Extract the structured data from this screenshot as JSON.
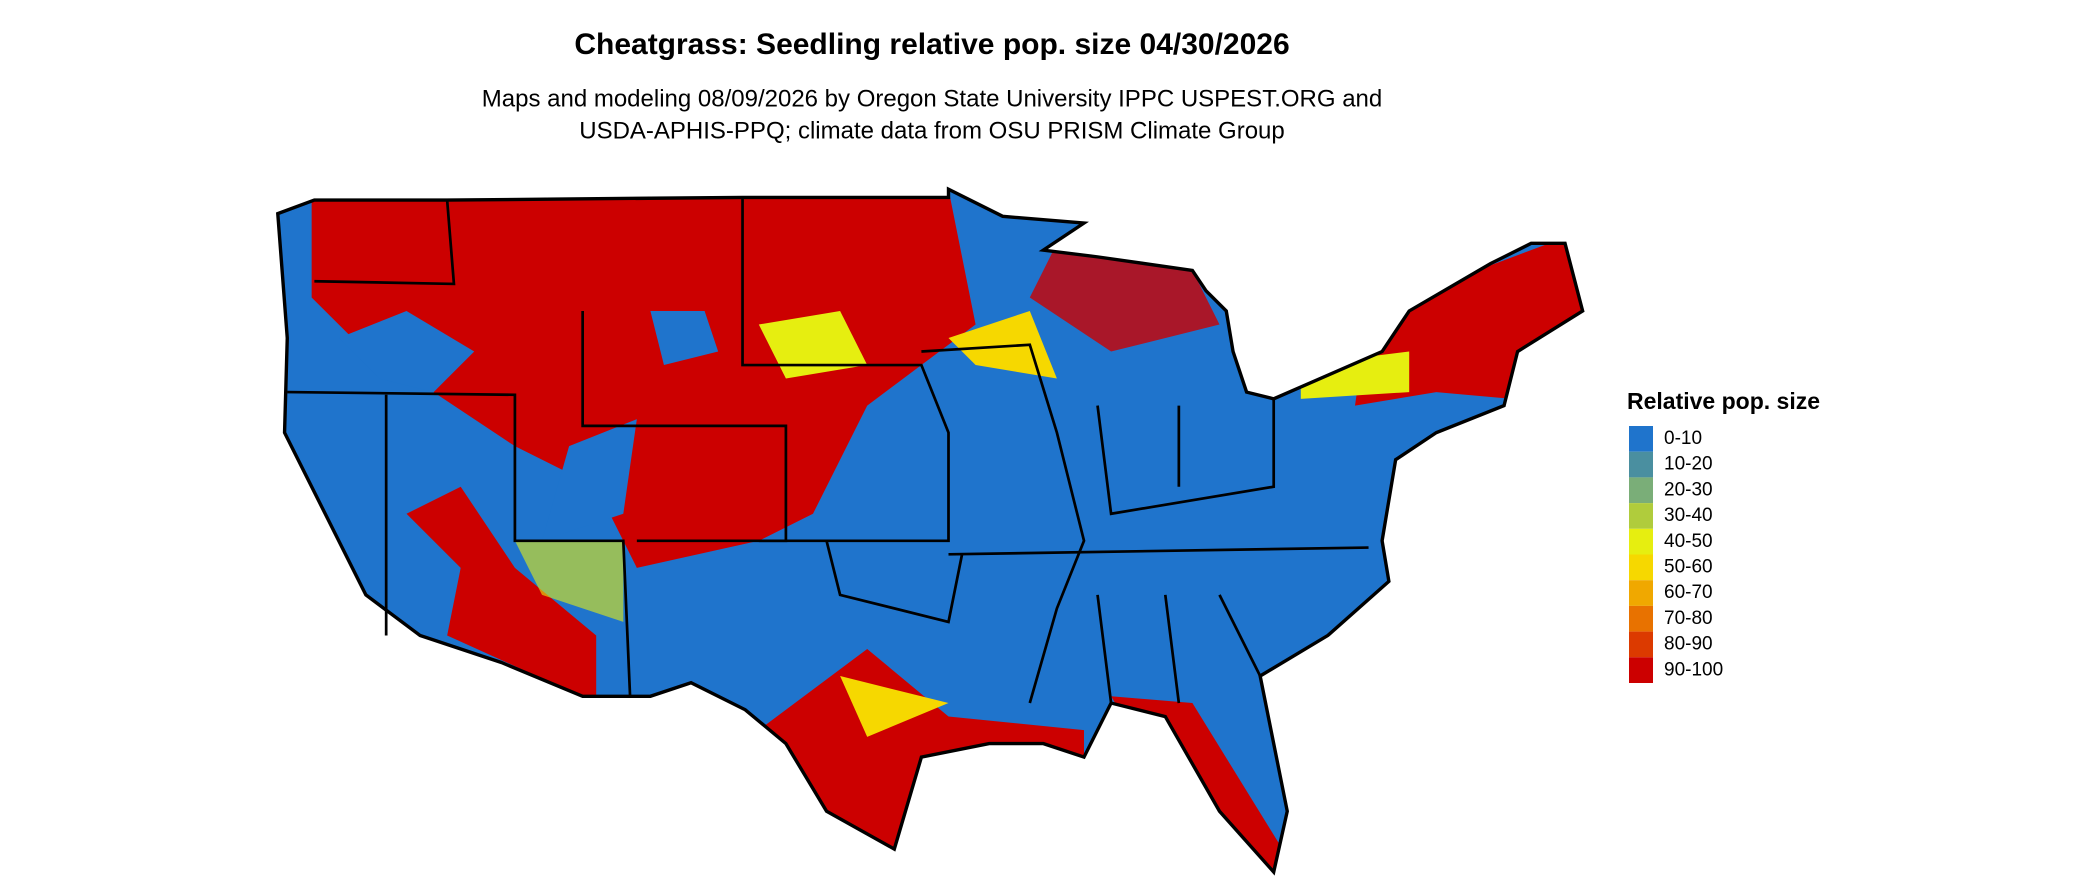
{
  "title": "Cheatgrass: Seedling relative pop. size 04/30/2026",
  "subtitle": [
    "Maps and modeling 08/09/2026 by Oregon State University IPPC USPEST.ORG and",
    "USDA-APHIS-PPQ; climate data from OSU PRISM Climate Group"
  ],
  "legend": {
    "title": "Relative pop. size",
    "items": [
      {
        "label": "0-10",
        "color": "#1f74cc"
      },
      {
        "label": "10-20",
        "color": "#4a8fa0"
      },
      {
        "label": "20-30",
        "color": "#7aae78"
      },
      {
        "label": "30-40",
        "color": "#b0cc3c"
      },
      {
        "label": "40-50",
        "color": "#e6ee10"
      },
      {
        "label": "50-60",
        "color": "#f6d800"
      },
      {
        "label": "60-70",
        "color": "#f0a800"
      },
      {
        "label": "70-80",
        "color": "#e87200"
      },
      {
        "label": "80-90",
        "color": "#dc3a00"
      },
      {
        "label": "90-100",
        "color": "#cc0000"
      }
    ]
  }
}
